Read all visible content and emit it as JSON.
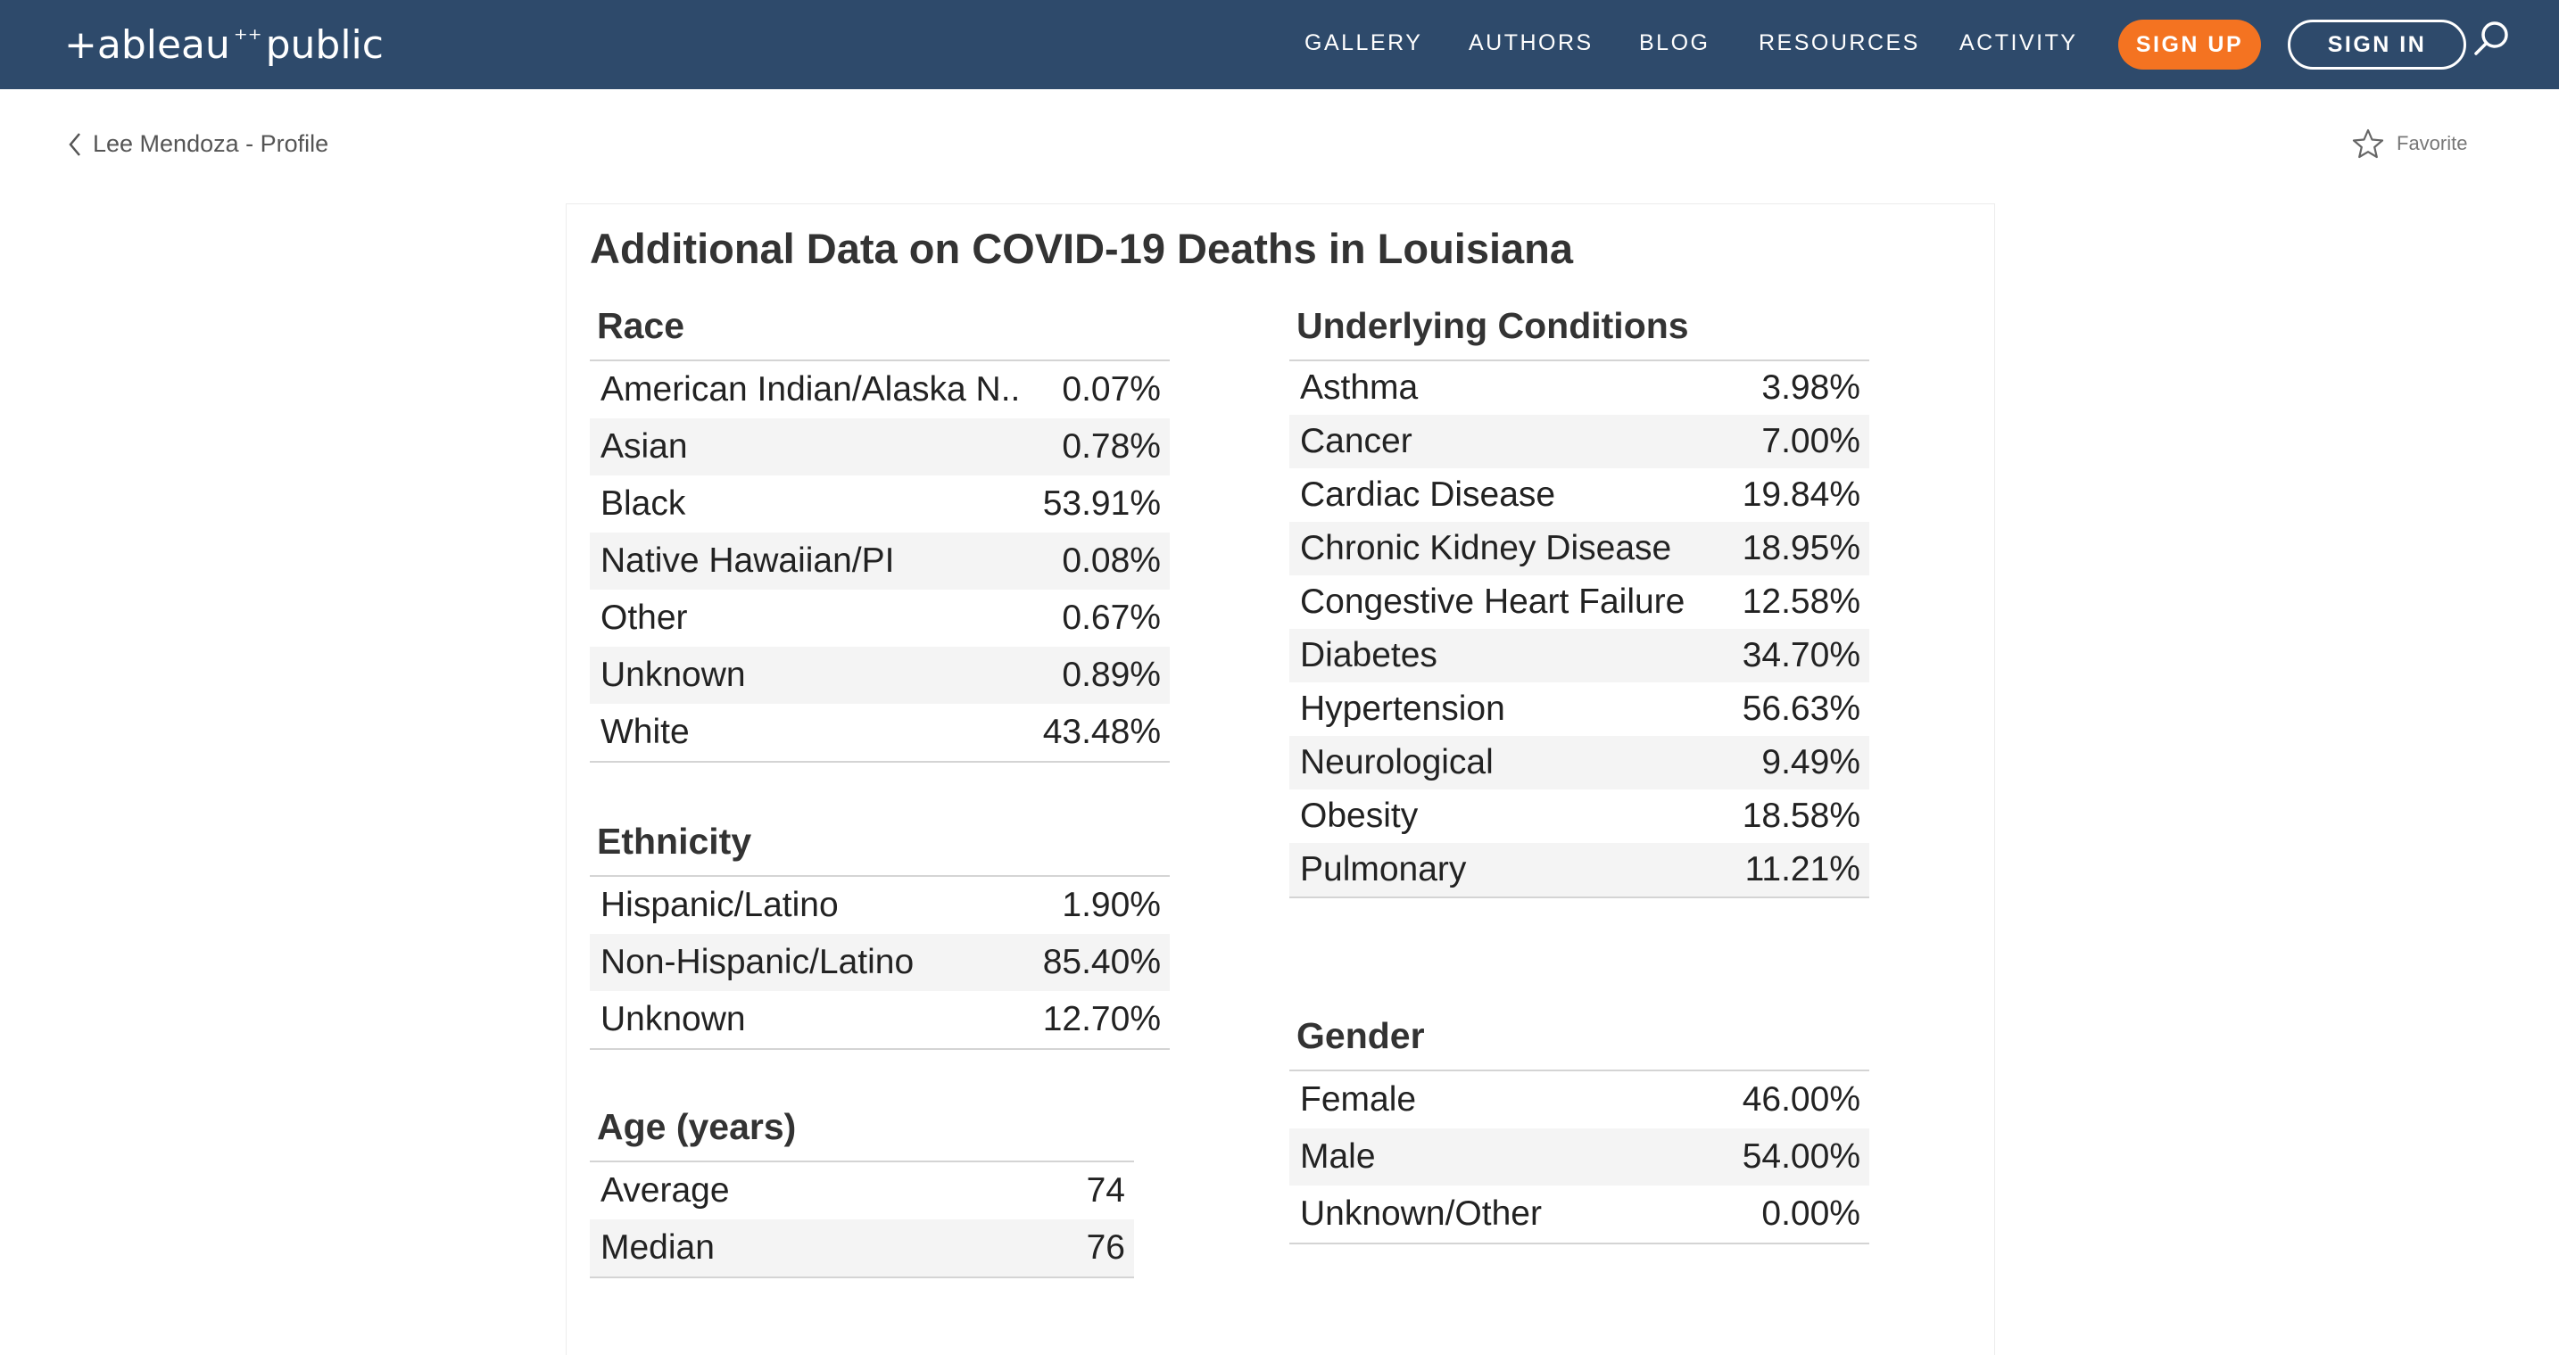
{
  "topbar": {
    "logo_left": "+ableau",
    "logo_sparkle": "⁺⁺",
    "logo_right": "public",
    "nav": [
      "GALLERY",
      "AUTHORS",
      "BLOG",
      "RESOURCES",
      "ACTIVITY"
    ],
    "sign_up": "SIGN UP",
    "sign_in": "SIGN IN",
    "search_icon": "search-icon",
    "bar_color": "#2e4a6b",
    "accent_color": "#f47321"
  },
  "subheader": {
    "back_label": "Lee Mendoza - Profile",
    "favorite_label": "Favorite"
  },
  "viz": {
    "title": "Additional Data on COVID-19 Deaths in Louisiana",
    "race": {
      "title": "Race",
      "rows": [
        {
          "label": "American Indian/Alaska N..",
          "value": "0.07%"
        },
        {
          "label": "Asian",
          "value": "0.78%"
        },
        {
          "label": "Black",
          "value": "53.91%"
        },
        {
          "label": "Native Hawaiian/PI",
          "value": "0.08%"
        },
        {
          "label": "Other",
          "value": "0.67%"
        },
        {
          "label": "Unknown",
          "value": "0.89%"
        },
        {
          "label": "White",
          "value": "43.48%"
        }
      ]
    },
    "ethnicity": {
      "title": "Ethnicity",
      "rows": [
        {
          "label": "Hispanic/Latino",
          "value": "1.90%"
        },
        {
          "label": "Non-Hispanic/Latino",
          "value": "85.40%"
        },
        {
          "label": "Unknown",
          "value": "12.70%"
        }
      ]
    },
    "age": {
      "title": "Age (years)",
      "rows": [
        {
          "label": "Average",
          "value": "74"
        },
        {
          "label": "Median",
          "value": "76"
        }
      ]
    },
    "conditions": {
      "title": "Underlying Conditions",
      "rows": [
        {
          "label": "Asthma",
          "value": "3.98%"
        },
        {
          "label": "Cancer",
          "value": "7.00%"
        },
        {
          "label": "Cardiac Disease",
          "value": "19.84%"
        },
        {
          "label": "Chronic Kidney Disease",
          "value": "18.95%"
        },
        {
          "label": "Congestive Heart Failure",
          "value": "12.58%"
        },
        {
          "label": "Diabetes",
          "value": "34.70%"
        },
        {
          "label": "Hypertension",
          "value": "56.63%"
        },
        {
          "label": "Neurological",
          "value": "9.49%"
        },
        {
          "label": "Obesity",
          "value": "18.58%"
        },
        {
          "label": "Pulmonary",
          "value": "11.21%"
        }
      ]
    },
    "gender": {
      "title": "Gender",
      "rows": [
        {
          "label": "Female",
          "value": "46.00%"
        },
        {
          "label": "Male",
          "value": "54.00%"
        },
        {
          "label": "Unknown/Other",
          "value": "0.00%"
        }
      ]
    }
  }
}
